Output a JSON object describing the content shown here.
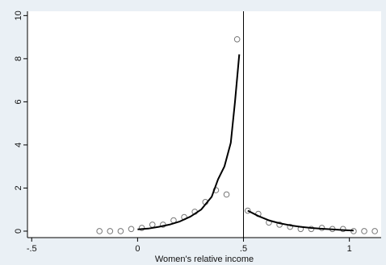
{
  "chart_data": {
    "type": "scatter",
    "title": "",
    "xlabel": "Women's relative income",
    "ylabel": "",
    "xlim": [
      -0.52,
      1.15
    ],
    "ylim": [
      -0.3,
      10.2
    ],
    "xticks": [
      {
        "value": -0.5,
        "label": "-.5"
      },
      {
        "value": 0,
        "label": "0"
      },
      {
        "value": 0.5,
        "label": ".5"
      },
      {
        "value": 1,
        "label": "1"
      }
    ],
    "yticks": [
      {
        "value": 0,
        "label": "0"
      },
      {
        "value": 2,
        "label": "2"
      },
      {
        "value": 4,
        "label": "4"
      },
      {
        "value": 6,
        "label": "6"
      },
      {
        "value": 8,
        "label": "8"
      },
      {
        "value": 10,
        "label": "10"
      }
    ],
    "grid": false,
    "reference_line_x": 0.5,
    "colors": {
      "background": "#eaf0f5",
      "plot_area": "#ffffff",
      "line": "#000000",
      "marker": "#777777",
      "axis": "#000000"
    },
    "series": [
      {
        "kind": "scatter",
        "marker": "hollow-circle",
        "x": [
          -0.18,
          -0.13,
          -0.08,
          -0.03,
          0.02,
          0.07,
          0.12,
          0.17,
          0.22,
          0.27,
          0.32,
          0.37,
          0.42,
          0.47,
          0.52,
          0.57,
          0.62,
          0.67,
          0.72,
          0.77,
          0.82,
          0.87,
          0.92,
          0.97,
          1.02,
          1.07,
          1.12
        ],
        "y": [
          0.0,
          0.0,
          0.0,
          0.1,
          0.15,
          0.3,
          0.3,
          0.5,
          0.65,
          0.9,
          1.35,
          1.9,
          1.7,
          8.9,
          0.95,
          0.8,
          0.4,
          0.3,
          0.2,
          0.1,
          0.1,
          0.15,
          0.1,
          0.1,
          0.0,
          0.0,
          0.0
        ]
      },
      {
        "kind": "line",
        "x": [
          0.0,
          0.05,
          0.1,
          0.15,
          0.2,
          0.25,
          0.3,
          0.35,
          0.38,
          0.41,
          0.44,
          0.46,
          0.48
        ],
        "y": [
          0.08,
          0.12,
          0.2,
          0.3,
          0.45,
          0.68,
          1.0,
          1.6,
          2.4,
          3.0,
          4.1,
          6.0,
          8.2
        ]
      },
      {
        "kind": "line",
        "x": [
          0.52,
          0.57,
          0.62,
          0.67,
          0.72,
          0.77,
          0.82,
          0.87,
          0.92,
          0.97,
          1.02
        ],
        "y": [
          0.95,
          0.7,
          0.5,
          0.37,
          0.27,
          0.2,
          0.15,
          0.11,
          0.08,
          0.05,
          0.03
        ]
      }
    ]
  }
}
